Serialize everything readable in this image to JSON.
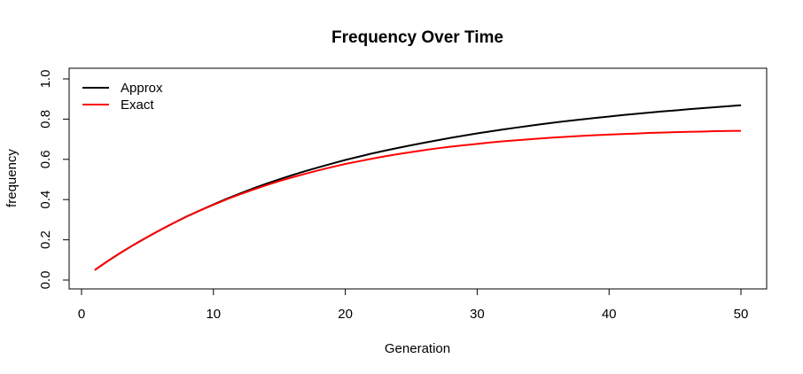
{
  "chart_data": {
    "type": "line",
    "title": "Frequency Over Time",
    "xlabel": "Generation",
    "ylabel": "frequency",
    "xlim": [
      1,
      50
    ],
    "ylim": [
      0,
      1
    ],
    "x_ticks": [
      0,
      10,
      20,
      30,
      40,
      50
    ],
    "y_ticks": [
      0.0,
      0.2,
      0.4,
      0.6,
      0.8,
      1.0
    ],
    "x_tick_labels": [
      "0",
      "10",
      "20",
      "30",
      "40",
      "50"
    ],
    "y_tick_labels": [
      "0.0",
      "0.2",
      "0.4",
      "0.6",
      "0.8",
      "1.0"
    ],
    "grid": false,
    "legend_position": "top-left",
    "x": [
      1,
      2,
      3,
      4,
      5,
      6,
      7,
      8,
      9,
      10,
      11,
      12,
      13,
      14,
      15,
      16,
      17,
      18,
      19,
      20,
      21,
      22,
      23,
      24,
      25,
      26,
      27,
      28,
      29,
      30,
      31,
      32,
      33,
      34,
      35,
      36,
      37,
      38,
      39,
      40,
      41,
      42,
      43,
      44,
      45,
      46,
      47,
      48,
      49,
      50
    ],
    "series": [
      {
        "name": "Approx",
        "color": "#000000",
        "values": [
          0.05,
          0.095,
          0.137,
          0.177,
          0.214,
          0.25,
          0.284,
          0.317,
          0.347,
          0.376,
          0.404,
          0.43,
          0.455,
          0.479,
          0.501,
          0.522,
          0.542,
          0.561,
          0.579,
          0.597,
          0.613,
          0.629,
          0.643,
          0.657,
          0.67,
          0.683,
          0.695,
          0.707,
          0.718,
          0.729,
          0.739,
          0.749,
          0.758,
          0.767,
          0.776,
          0.784,
          0.792,
          0.799,
          0.806,
          0.813,
          0.82,
          0.826,
          0.832,
          0.838,
          0.843,
          0.849,
          0.854,
          0.859,
          0.864,
          0.869
        ]
      },
      {
        "name": "Exact",
        "color": "#ff0000",
        "values": [
          0.05,
          0.095,
          0.137,
          0.177,
          0.214,
          0.25,
          0.284,
          0.316,
          0.346,
          0.374,
          0.401,
          0.426,
          0.449,
          0.471,
          0.492,
          0.511,
          0.529,
          0.546,
          0.562,
          0.577,
          0.59,
          0.603,
          0.615,
          0.626,
          0.636,
          0.646,
          0.655,
          0.663,
          0.67,
          0.677,
          0.684,
          0.69,
          0.695,
          0.7,
          0.705,
          0.709,
          0.713,
          0.717,
          0.72,
          0.723,
          0.726,
          0.728,
          0.731,
          0.733,
          0.735,
          0.737,
          0.738,
          0.74,
          0.741,
          0.742
        ]
      }
    ]
  }
}
